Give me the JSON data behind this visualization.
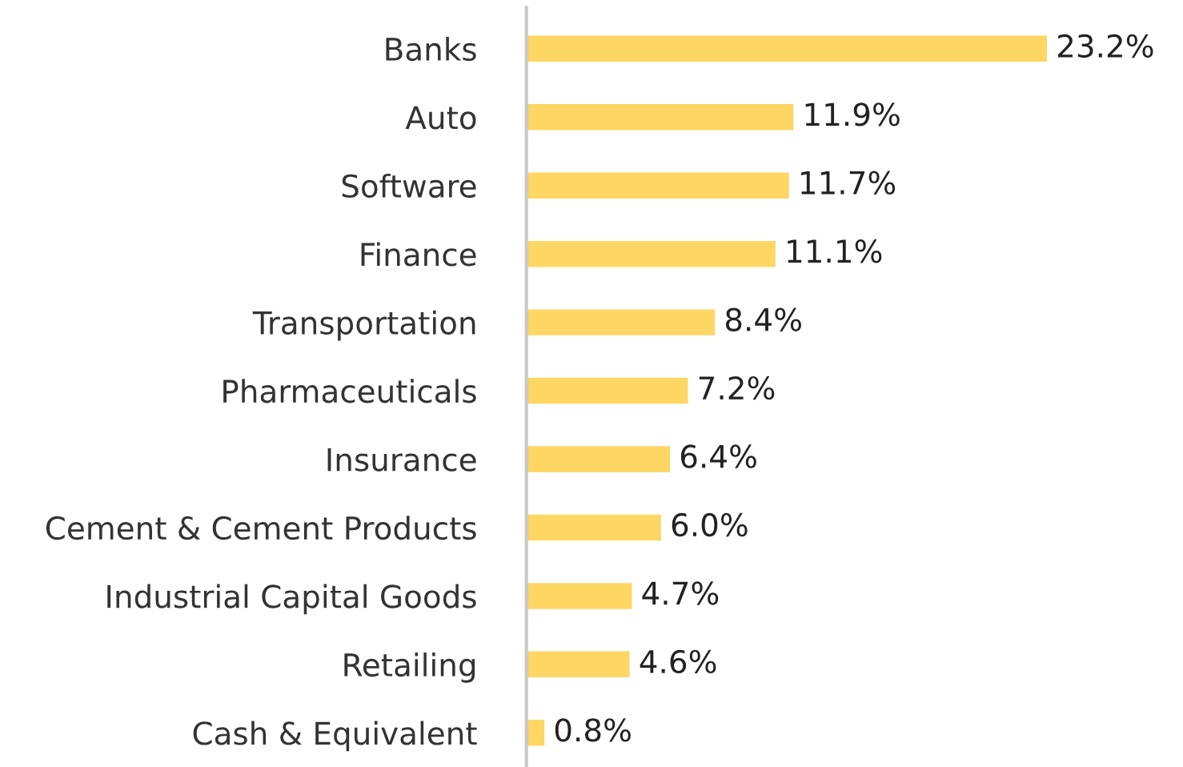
{
  "chart_data": {
    "type": "bar",
    "orientation": "horizontal",
    "categories": [
      "Banks",
      "Auto",
      "Software",
      "Finance",
      "Transportation",
      "Pharmaceuticals",
      "Insurance",
      "Cement & Cement Products",
      "Industrial Capital Goods",
      "Retailing",
      "Cash & Equivalent"
    ],
    "values": [
      23.2,
      11.9,
      11.7,
      11.1,
      8.4,
      7.2,
      6.4,
      6.0,
      4.7,
      4.6,
      0.8
    ],
    "value_labels": [
      "23.2%",
      "11.9%",
      "11.7%",
      "11.1%",
      "8.4%",
      "7.2%",
      "6.4%",
      "6.0%",
      "4.7%",
      "4.6%",
      "0.8%"
    ],
    "color": "#fdd663",
    "grid": false,
    "legend": false
  }
}
